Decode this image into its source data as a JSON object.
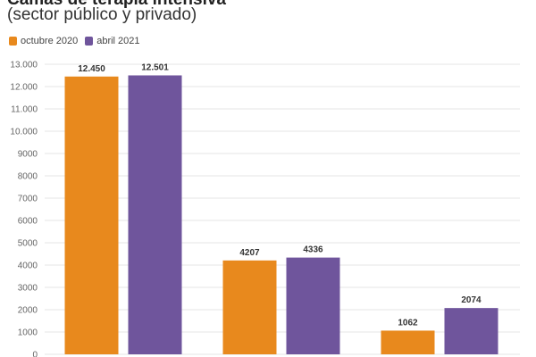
{
  "chart_data": {
    "type": "bar",
    "title": "Camas de terapia intensiva",
    "subtitle": "(sector público y privado)",
    "categories": [
      "",
      "",
      ""
    ],
    "series": [
      {
        "name": "octubre 2020",
        "color": "#E8891D",
        "values": [
          12450,
          4207,
          1062
        ],
        "labels": [
          "12.450",
          "4207",
          "1062"
        ]
      },
      {
        "name": "abril 2021",
        "color": "#6F559C",
        "values": [
          12501,
          4336,
          2074
        ],
        "labels": [
          "12.501",
          "4336",
          "2074"
        ]
      }
    ],
    "ylim": [
      0,
      13000
    ],
    "yticks": [
      {
        "value": 0,
        "label": "0"
      },
      {
        "value": 1000,
        "label": "1000"
      },
      {
        "value": 2000,
        "label": "2000"
      },
      {
        "value": 3000,
        "label": "3000"
      },
      {
        "value": 4000,
        "label": "4000"
      },
      {
        "value": 5000,
        "label": "5000"
      },
      {
        "value": 6000,
        "label": "6000"
      },
      {
        "value": 7000,
        "label": "7000"
      },
      {
        "value": 8000,
        "label": "8000"
      },
      {
        "value": 9000,
        "label": "9000"
      },
      {
        "value": 10000,
        "label": "10.000"
      },
      {
        "value": 11000,
        "label": "11.000"
      },
      {
        "value": 12000,
        "label": "12.000"
      },
      {
        "value": 13000,
        "label": "13.000"
      }
    ],
    "grid": true,
    "legend": "top-left"
  }
}
